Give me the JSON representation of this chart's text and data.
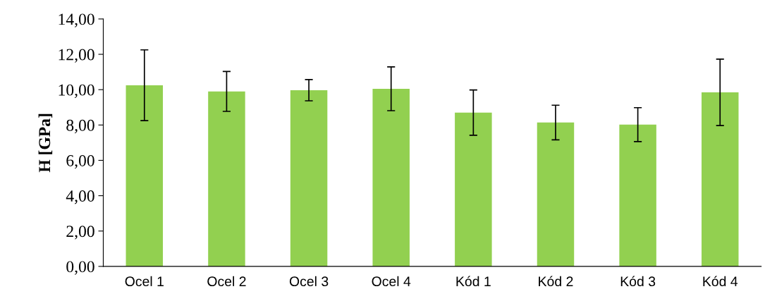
{
  "chart_data": {
    "type": "bar",
    "ylabel": "H [GPa]",
    "categories": [
      "Ocel 1",
      "Ocel 2",
      "Ocel 3",
      "Ocel 4",
      "Kód 1",
      "Kód 2",
      "Kód 3",
      "Kód 4"
    ],
    "values": [
      10.25,
      9.9,
      9.97,
      10.05,
      8.7,
      8.14,
      8.02,
      9.85
    ],
    "errors": [
      2.0,
      1.13,
      0.6,
      1.24,
      1.28,
      0.98,
      0.96,
      1.88
    ],
    "color": "#92d050",
    "ylim": [
      0,
      14
    ],
    "yticks": [
      {
        "value": 0,
        "label": "0,00"
      },
      {
        "value": 2,
        "label": "2,00"
      },
      {
        "value": 4,
        "label": "4,00"
      },
      {
        "value": 6,
        "label": "6,00"
      },
      {
        "value": 8,
        "label": "8,00"
      },
      {
        "value": 10,
        "label": "10,00"
      },
      {
        "value": 12,
        "label": "12,00"
      },
      {
        "value": 14,
        "label": "14,00"
      }
    ],
    "grid": false
  }
}
